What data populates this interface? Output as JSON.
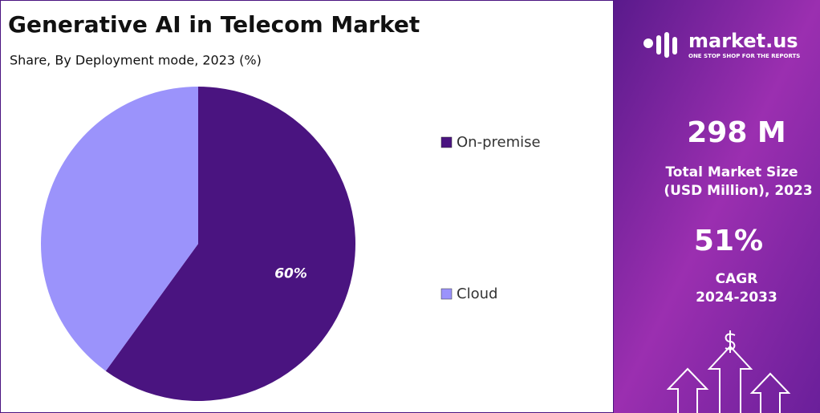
{
  "chart_data": {
    "type": "pie",
    "title": "Generative AI in Telecom Market",
    "subtitle": "Share, By Deployment mode, 2023 (%)",
    "categories": [
      "On-premise",
      "Cloud"
    ],
    "values": [
      60,
      40
    ],
    "value_labels": [
      "60%",
      null
    ],
    "colors": [
      "#4a1480",
      "#9b93fb"
    ],
    "legend": "right"
  },
  "panel": {
    "brand": "market.us",
    "tagline": "ONE STOP SHOP FOR THE REPORTS",
    "market_size": "298 M",
    "market_size_label": [
      "Total Market Size",
      "(USD Million), 2023"
    ],
    "cagr": "51%",
    "cagr_label": "CAGR",
    "cagr_period": "2024-2033"
  }
}
